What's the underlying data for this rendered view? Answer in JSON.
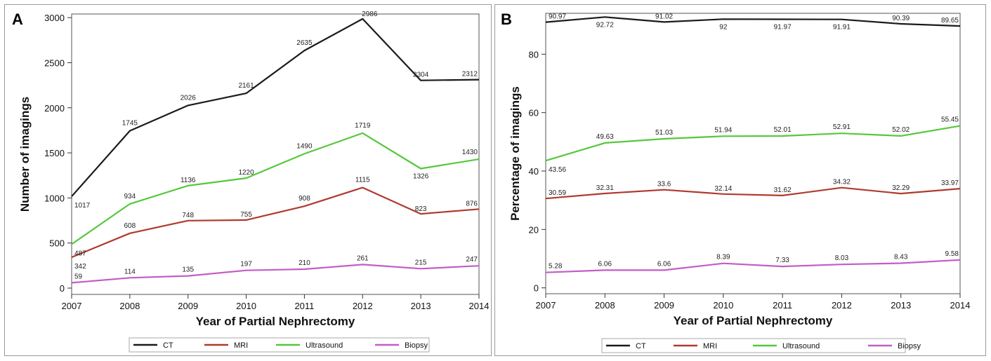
{
  "chart_data": [
    {
      "panel_label": "A",
      "type": "line",
      "xlabel": "Year of Partial Nephrectomy",
      "ylabel": "Number of imagings",
      "x": [
        2007,
        2008,
        2009,
        2010,
        2011,
        2012,
        2013,
        2014
      ],
      "x_ticks": [
        "2007",
        "2008",
        "2009",
        "2010",
        "2011",
        "2012",
        "2013",
        "2014"
      ],
      "y_ticks": [
        "0",
        "500",
        "1000",
        "1500",
        "2000",
        "2500",
        "3000"
      ],
      "ylim": [
        -70,
        3040
      ],
      "grid": false,
      "legend_position": "bottom",
      "series": [
        {
          "name": "CT",
          "color": "#1a1a1a",
          "values": [
            1017,
            1745,
            2026,
            2161,
            2635,
            2986,
            2304,
            2312
          ],
          "labels": [
            "1017",
            "1745",
            "2026",
            "2161",
            "2635",
            "2986",
            "2304",
            "2312"
          ]
        },
        {
          "name": "MRI",
          "color": "#b03a2e",
          "values": [
            342,
            608,
            748,
            755,
            908,
            1115,
            823,
            876
          ],
          "labels": [
            "342",
            "608",
            "748",
            "755",
            "908",
            "1115",
            "823",
            "876"
          ]
        },
        {
          "name": "Ultrasound",
          "color": "#55c83c",
          "values": [
            487,
            934,
            1136,
            1220,
            1490,
            1719,
            1326,
            1430
          ],
          "labels": [
            "487",
            "934",
            "1136",
            "1220",
            "1490",
            "1719",
            "1326",
            "1430"
          ]
        },
        {
          "name": "Biopsy",
          "color": "#c35cc8",
          "values": [
            59,
            114,
            135,
            197,
            210,
            261,
            215,
            247
          ],
          "labels": [
            "59",
            "114",
            "135",
            "197",
            "210",
            "261",
            "215",
            "247"
          ]
        }
      ]
    },
    {
      "panel_label": "B",
      "type": "line",
      "xlabel": "Year of Partial Nephrectomy",
      "ylabel": "Percentage of imagings",
      "x": [
        2007,
        2008,
        2009,
        2010,
        2011,
        2012,
        2013,
        2014
      ],
      "x_ticks": [
        "2007",
        "2008",
        "2009",
        "2010",
        "2011",
        "2012",
        "2013",
        "2014"
      ],
      "y_ticks": [
        "0",
        "20",
        "40",
        "60",
        "80"
      ],
      "ylim": [
        -2,
        94
      ],
      "grid": false,
      "legend_position": "bottom",
      "series": [
        {
          "name": "CT",
          "color": "#1a1a1a",
          "values": [
            90.97,
            92.72,
            91.02,
            92,
            91.97,
            91.91,
            90.39,
            89.65
          ],
          "labels": [
            "90.97",
            "92.72",
            "91.02",
            "92",
            "91.97",
            "91.91",
            "90.39",
            "89.65"
          ]
        },
        {
          "name": "MRI",
          "color": "#b03a2e",
          "values": [
            30.59,
            32.31,
            33.6,
            32.14,
            31.62,
            34.32,
            32.29,
            33.97
          ],
          "labels": [
            "30.59",
            "32.31",
            "33.6",
            "32.14",
            "31.62",
            "34.32",
            "32.29",
            "33.97"
          ]
        },
        {
          "name": "Ultrasound",
          "color": "#55c83c",
          "values": [
            43.56,
            49.63,
            51.03,
            51.94,
            52.01,
            52.91,
            52.02,
            55.45
          ],
          "labels": [
            "43.56",
            "49.63",
            "51.03",
            "51.94",
            "52.01",
            "52.91",
            "52.02",
            "55.45"
          ]
        },
        {
          "name": "Biopsy",
          "color": "#c35cc8",
          "values": [
            5.28,
            6.06,
            6.06,
            8.39,
            7.33,
            8.03,
            8.43,
            9.58
          ],
          "labels": [
            "5.28",
            "6.06",
            "6.06",
            "8.39",
            "7.33",
            "8.03",
            "8.43",
            "9.58"
          ]
        }
      ]
    }
  ]
}
